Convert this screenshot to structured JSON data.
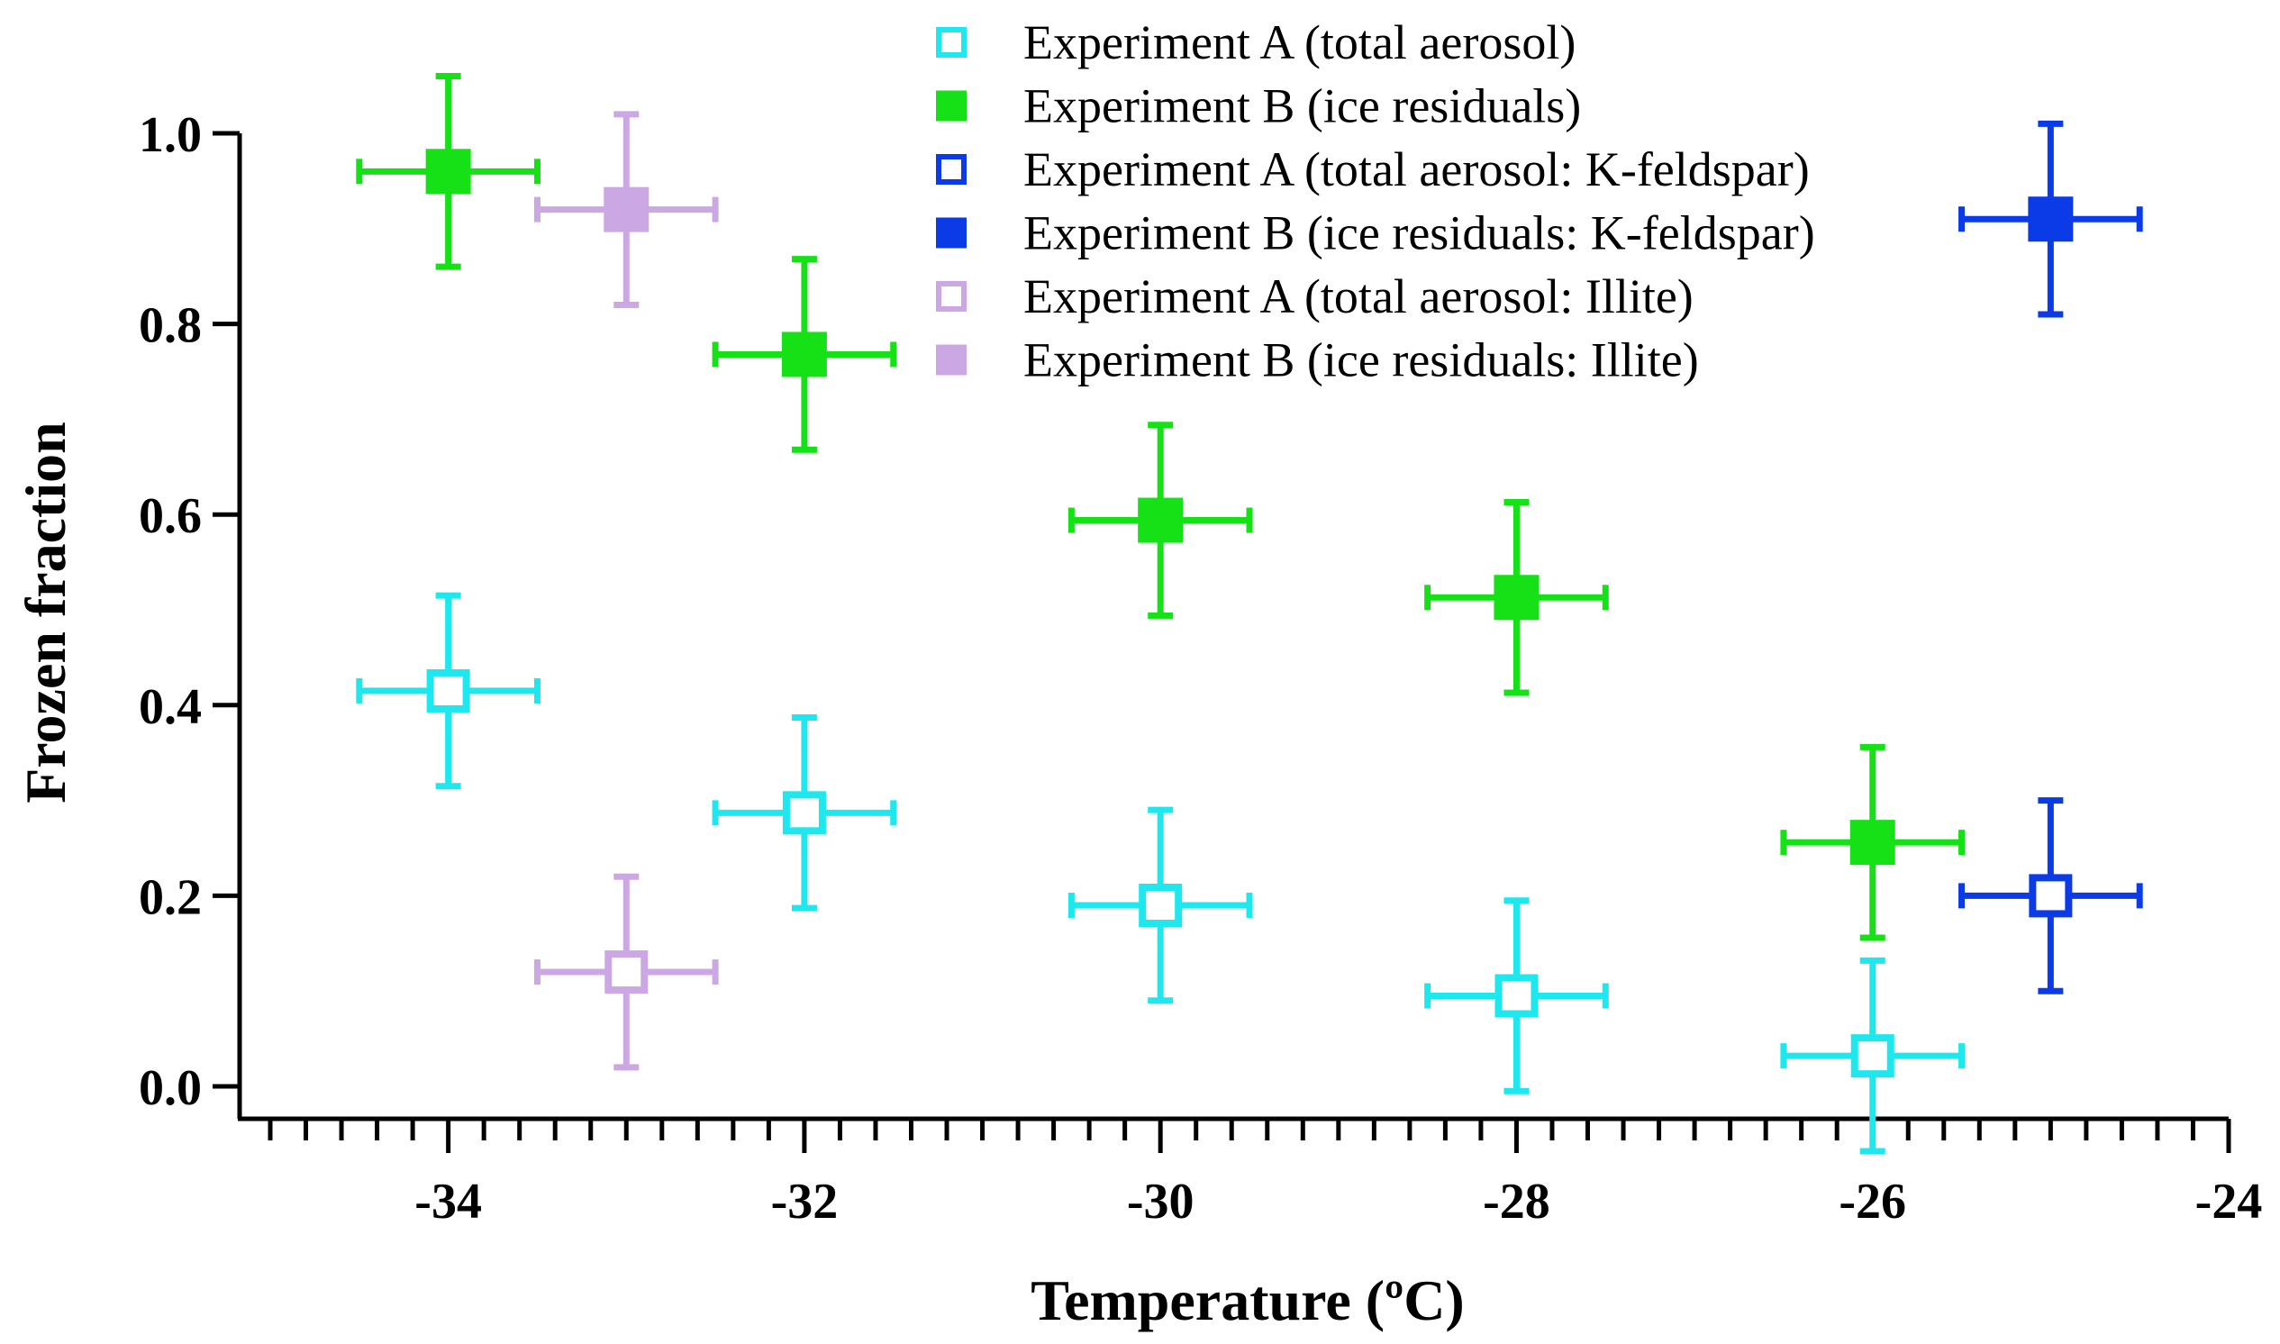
{
  "chart_data": {
    "type": "scatter",
    "xlabel": "Temperature (ºC)",
    "ylabel": "Frozen fraction",
    "xlim": [
      -35,
      -24
    ],
    "ylim": [
      0,
      1.0
    ],
    "x_ticks": [
      -34,
      -32,
      -30,
      -28,
      -26,
      -24
    ],
    "x_tick_labels": [
      "-34",
      "-32",
      "-30",
      "-28",
      "-26",
      "-24"
    ],
    "x_minor_step": 0.2,
    "y_ticks": [
      0.0,
      0.2,
      0.4,
      0.6,
      0.8,
      1.0
    ],
    "y_tick_labels": [
      "0.0",
      "0.2",
      "0.4",
      "0.6",
      "0.8",
      "1.0"
    ],
    "grid": false,
    "legend_position": "top-right",
    "series": [
      {
        "name": "Experiment A (total aerosol)",
        "color": "#1ee8ee",
        "marker": "square-open",
        "points": [
          {
            "x": -34,
            "y": 0.415,
            "xerr": 0.5,
            "yerr": 0.1
          },
          {
            "x": -32,
            "y": 0.287,
            "xerr": 0.5,
            "yerr": 0.1
          },
          {
            "x": -30,
            "y": 0.19,
            "xerr": 0.5,
            "yerr": 0.1
          },
          {
            "x": -28,
            "y": 0.095,
            "xerr": 0.5,
            "yerr": 0.1
          },
          {
            "x": -26,
            "y": 0.032,
            "xerr": 0.5,
            "yerr": 0.1
          }
        ]
      },
      {
        "name": "Experiment B (ice residuals)",
        "color": "#16e016",
        "marker": "square-filled",
        "points": [
          {
            "x": -34,
            "y": 0.96,
            "xerr": 0.5,
            "yerr": 0.1
          },
          {
            "x": -32,
            "y": 0.768,
            "xerr": 0.5,
            "yerr": 0.1
          },
          {
            "x": -30,
            "y": 0.594,
            "xerr": 0.5,
            "yerr": 0.1
          },
          {
            "x": -28,
            "y": 0.513,
            "xerr": 0.5,
            "yerr": 0.1
          },
          {
            "x": -26,
            "y": 0.256,
            "xerr": 0.5,
            "yerr": 0.1
          }
        ]
      },
      {
        "name": "Experiment A (total aerosol: K-feldspar)",
        "color": "#0a3be6",
        "marker": "square-open",
        "points": [
          {
            "x": -25,
            "y": 0.2,
            "xerr": 0.5,
            "yerr": 0.1
          }
        ]
      },
      {
        "name": "Experiment B (ice residuals: K-feldspar)",
        "color": "#0a3be6",
        "marker": "square-filled",
        "points": [
          {
            "x": -25,
            "y": 0.91,
            "xerr": 0.5,
            "yerr": 0.1
          }
        ]
      },
      {
        "name": "Experiment A (total aerosol: Illite)",
        "color": "#cba8e4",
        "marker": "square-open",
        "points": [
          {
            "x": -33,
            "y": 0.12,
            "xerr": 0.5,
            "yerr": 0.1
          }
        ]
      },
      {
        "name": "Experiment B (ice residuals: Illite)",
        "color": "#cba8e4",
        "marker": "square-filled",
        "points": [
          {
            "x": -33,
            "y": 0.92,
            "xerr": 0.5,
            "yerr": 0.1
          }
        ]
      }
    ]
  }
}
